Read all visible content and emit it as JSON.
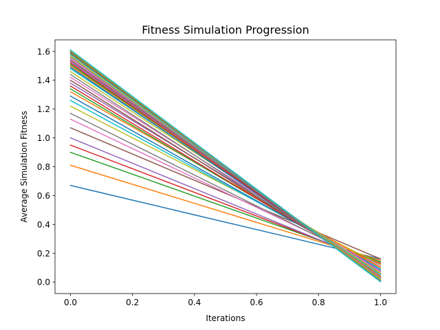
{
  "chart_data": {
    "type": "line",
    "title": "Fitness Simulation Progression",
    "xlabel": "Iterations",
    "ylabel": "Average Simulation Fitness",
    "x": [
      0.0,
      1.0
    ],
    "xlim": [
      -0.05,
      1.05
    ],
    "ylim": [
      -0.08,
      1.68
    ],
    "xticks": [
      0.0,
      0.2,
      0.4,
      0.6,
      0.8,
      1.0
    ],
    "xtick_labels": [
      "0.0",
      "0.2",
      "0.4",
      "0.6",
      "0.8",
      "1.0"
    ],
    "yticks": [
      0.0,
      0.2,
      0.4,
      0.6,
      0.8,
      1.0,
      1.2,
      1.4,
      1.6
    ],
    "ytick_labels": [
      "0.0",
      "0.2",
      "0.4",
      "0.6",
      "0.8",
      "1.0",
      "1.2",
      "1.4",
      "1.6"
    ],
    "grid": false,
    "legend": "none",
    "series": [
      {
        "color": "#1f77b4",
        "values": [
          0.67,
          0.16
        ]
      },
      {
        "color": "#ff7f0e",
        "values": [
          0.81,
          0.15
        ]
      },
      {
        "color": "#2ca02c",
        "values": [
          0.9,
          0.14
        ]
      },
      {
        "color": "#d62728",
        "values": [
          0.95,
          0.13
        ]
      },
      {
        "color": "#9467bd",
        "values": [
          1.0,
          0.12
        ]
      },
      {
        "color": "#8c564b",
        "values": [
          1.07,
          0.16
        ]
      },
      {
        "color": "#e377c2",
        "values": [
          1.13,
          0.11
        ]
      },
      {
        "color": "#7f7f7f",
        "values": [
          1.17,
          0.1
        ]
      },
      {
        "color": "#bcbd22",
        "values": [
          1.22,
          0.12
        ]
      },
      {
        "color": "#17becf",
        "values": [
          1.26,
          0.09
        ]
      },
      {
        "color": "#1f77b4",
        "values": [
          1.29,
          0.08
        ]
      },
      {
        "color": "#ff7f0e",
        "values": [
          1.32,
          0.1
        ]
      },
      {
        "color": "#2ca02c",
        "values": [
          1.34,
          0.07
        ]
      },
      {
        "color": "#d62728",
        "values": [
          1.36,
          0.06
        ]
      },
      {
        "color": "#9467bd",
        "values": [
          1.38,
          0.08
        ]
      },
      {
        "color": "#8c564b",
        "values": [
          1.4,
          0.05
        ]
      },
      {
        "color": "#e377c2",
        "values": [
          1.42,
          0.07
        ]
      },
      {
        "color": "#7f7f7f",
        "values": [
          1.44,
          0.04
        ]
      },
      {
        "color": "#bcbd22",
        "values": [
          1.46,
          0.06
        ]
      },
      {
        "color": "#17becf",
        "values": [
          1.48,
          0.05
        ]
      },
      {
        "color": "#1f77b4",
        "values": [
          1.49,
          0.03
        ]
      },
      {
        "color": "#ff7f0e",
        "values": [
          1.5,
          0.04
        ]
      },
      {
        "color": "#2ca02c",
        "values": [
          1.51,
          0.03
        ]
      },
      {
        "color": "#d62728",
        "values": [
          1.52,
          0.02
        ]
      },
      {
        "color": "#9467bd",
        "values": [
          1.53,
          0.03
        ]
      },
      {
        "color": "#8c564b",
        "values": [
          1.54,
          0.02
        ]
      },
      {
        "color": "#e377c2",
        "values": [
          1.55,
          0.02
        ]
      },
      {
        "color": "#7f7f7f",
        "values": [
          1.56,
          0.01
        ]
      },
      {
        "color": "#bcbd22",
        "values": [
          1.57,
          0.02
        ]
      },
      {
        "color": "#17becf",
        "values": [
          1.58,
          0.01
        ]
      },
      {
        "color": "#1f77b4",
        "values": [
          1.585,
          0.01
        ]
      },
      {
        "color": "#ff7f0e",
        "values": [
          1.59,
          0.01
        ]
      },
      {
        "color": "#2ca02c",
        "values": [
          1.595,
          0.01
        ]
      },
      {
        "color": "#d62728",
        "values": [
          1.6,
          0.005
        ]
      },
      {
        "color": "#9467bd",
        "values": [
          1.6,
          0.005
        ]
      },
      {
        "color": "#8c564b",
        "values": [
          1.6,
          0.005
        ]
      },
      {
        "color": "#e377c2",
        "values": [
          1.605,
          0.005
        ]
      },
      {
        "color": "#7f7f7f",
        "values": [
          1.605,
          0.003
        ]
      },
      {
        "color": "#bcbd22",
        "values": [
          1.605,
          0.003
        ]
      },
      {
        "color": "#17becf",
        "values": [
          1.61,
          0.002
        ]
      }
    ]
  }
}
